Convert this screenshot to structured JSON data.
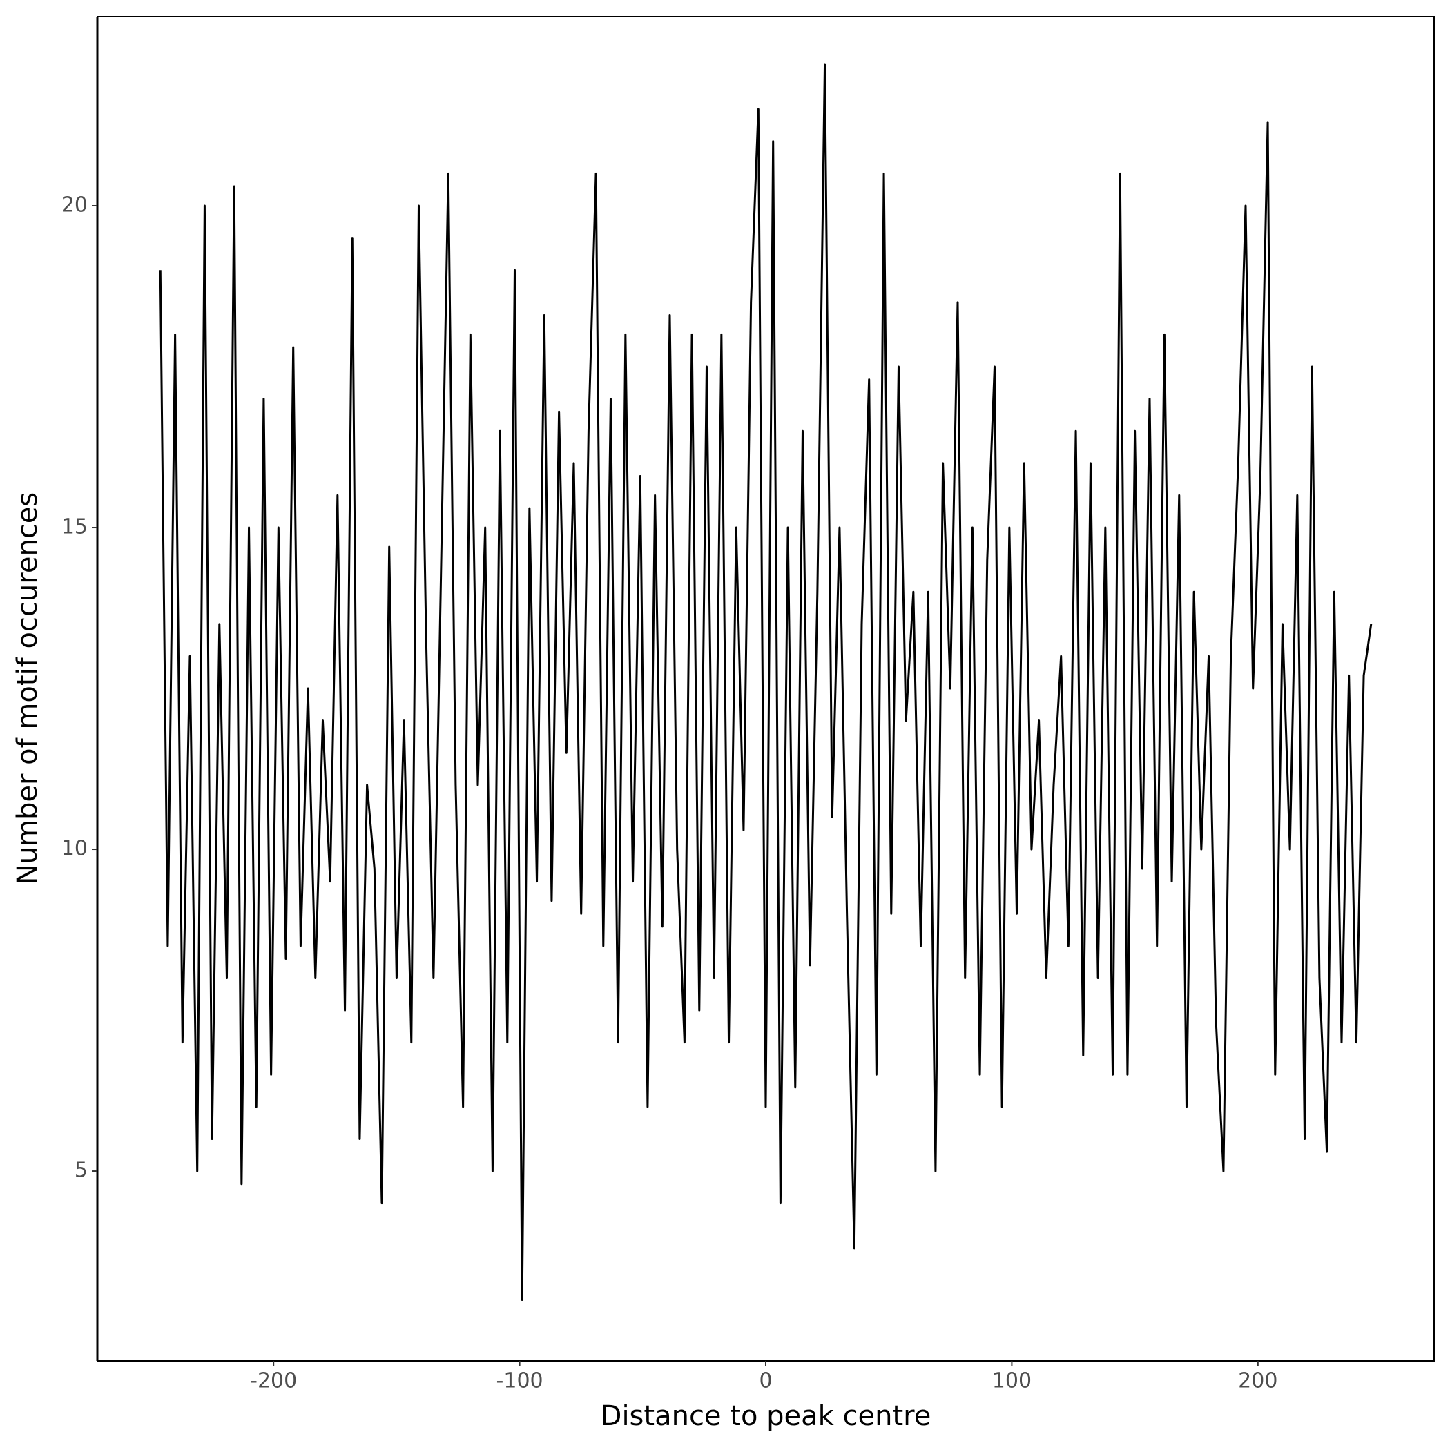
{
  "chart_data": {
    "type": "line",
    "x_label": "Distance to peak centre",
    "y_label": "Number of motif occurences",
    "xlim": [
      -271.6,
      271.6
    ],
    "ylim": [
      2.05,
      22.94
    ],
    "xticks": [
      -200,
      -100,
      0,
      100,
      200
    ],
    "yticks": [
      5,
      10,
      15,
      20
    ],
    "grid": false,
    "x": [
      -246,
      -243,
      -240,
      -237,
      -234,
      -231,
      -228,
      -225,
      -222,
      -219,
      -216,
      -213,
      -210,
      -207,
      -204,
      -201,
      -198,
      -195,
      -192,
      -189,
      -186,
      -183,
      -180,
      -177,
      -174,
      -171,
      -168,
      -165,
      -162,
      -159,
      -156,
      -153,
      -150,
      -147,
      -144,
      -141,
      -138,
      -135,
      -132,
      -129,
      -126,
      -123,
      -120,
      -117,
      -114,
      -111,
      -108,
      -105,
      -102,
      -99,
      -96,
      -93,
      -90,
      -87,
      -84,
      -81,
      -78,
      -75,
      -72,
      -69,
      -66,
      -63,
      -60,
      -57,
      -54,
      -51,
      -48,
      -45,
      -42,
      -39,
      -36,
      -33,
      -30,
      -27,
      -24,
      -21,
      -18,
      -15,
      -12,
      -9,
      -6,
      -3,
      0,
      3,
      6,
      9,
      12,
      15,
      18,
      21,
      24,
      27,
      30,
      33,
      36,
      39,
      42,
      45,
      48,
      51,
      54,
      57,
      60,
      63,
      66,
      69,
      72,
      75,
      78,
      81,
      84,
      87,
      90,
      93,
      96,
      99,
      102,
      105,
      108,
      111,
      114,
      117,
      120,
      123,
      126,
      129,
      132,
      135,
      138,
      141,
      144,
      147,
      150,
      153,
      156,
      159,
      162,
      165,
      168,
      171,
      174,
      177,
      180,
      183,
      186,
      189,
      192,
      195,
      198,
      201,
      204,
      207,
      210,
      213,
      216,
      219,
      222,
      225,
      228,
      231,
      234,
      237,
      240,
      243,
      246
    ],
    "series": [
      {
        "color": "#000000",
        "values": [
          19,
          8.5,
          18,
          7,
          13,
          5,
          20,
          5.5,
          13.5,
          8,
          20.3,
          4.8,
          15,
          6,
          17,
          6.5,
          15,
          8.3,
          17.8,
          8.5,
          12.5,
          8,
          12,
          9.5,
          15.5,
          7.5,
          19.5,
          5.5,
          11,
          9.7,
          4.5,
          14.7,
          8,
          12,
          7,
          20,
          13.3,
          8,
          14.2,
          20.5,
          11,
          6,
          18,
          11,
          15,
          5,
          16.5,
          7,
          19,
          3,
          15.3,
          9.5,
          18.3,
          9.2,
          16.8,
          11.5,
          16,
          9,
          16.5,
          20.5,
          8.5,
          17,
          7,
          18,
          9.5,
          15.8,
          6,
          15.5,
          8.8,
          18.3,
          10,
          7,
          18,
          7.5,
          17.5,
          8,
          18,
          7,
          15,
          10.3,
          18.5,
          21.5,
          6,
          21,
          4.5,
          15,
          6.3,
          16.5,
          8.2,
          14,
          22.2,
          10.5,
          15,
          9,
          3.8,
          13.5,
          17.3,
          6.5,
          20.5,
          9,
          17.5,
          12,
          14,
          8.5,
          14,
          5,
          16,
          12.5,
          18.5,
          8,
          15,
          6.5,
          14.5,
          17.5,
          6,
          15,
          9,
          16,
          10,
          12,
          8,
          11,
          13,
          8.5,
          16.5,
          6.8,
          16,
          8,
          15,
          6.5,
          20.5,
          6.5,
          16.5,
          9.7,
          17,
          8.5,
          18,
          9.5,
          15.5,
          6,
          14,
          10,
          13,
          7.3,
          5,
          13,
          16,
          20,
          12.5,
          15.8,
          21.3,
          6.5,
          13.5,
          10,
          15.5,
          5.5,
          17.5,
          8,
          5.3,
          14,
          7,
          12.7,
          7,
          12.7,
          13.5
        ]
      }
    ]
  }
}
